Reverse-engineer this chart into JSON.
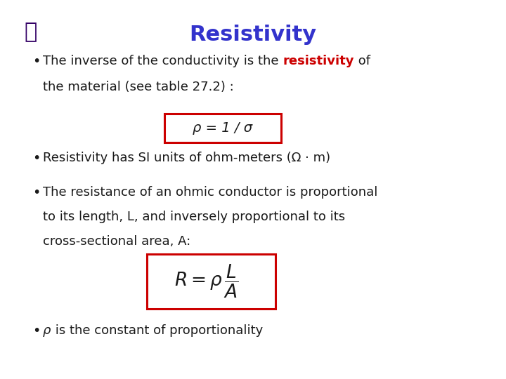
{
  "title": "Resistivity",
  "title_color": "#3333cc",
  "title_fontsize": 22,
  "bg_color": "#ffffff",
  "bullet_color": "#1a1a1a",
  "text_fontsize": 13,
  "red_color": "#cc0000",
  "box_color": "#cc0000",
  "formula1": "ρ = 1 / σ",
  "bullet2": "Resistivity has SI units of ohm-meters (Ω · m)",
  "bullet3_line1": "The resistance of an ohmic conductor is proportional",
  "bullet3_line2": "to its length, L, and inversely proportional to its",
  "bullet3_line3": "cross-sectional area, A:",
  "bullet4_rho": "ρ",
  "bullet4_rest": " is the constant of proportionality"
}
